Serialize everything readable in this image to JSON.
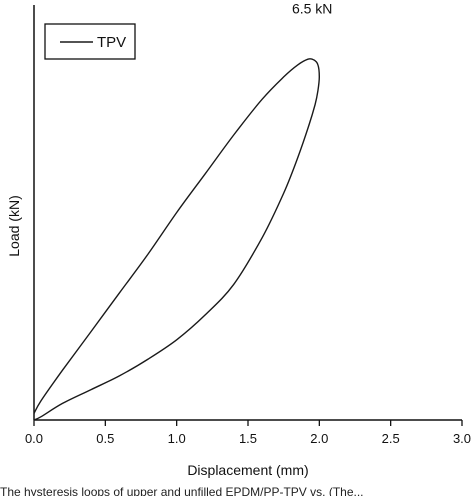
{
  "chart_data": {
    "type": "line",
    "title": "",
    "xlabel": "Displacement (mm)",
    "ylabel": "Load (kN)",
    "xlim": [
      0,
      3.0
    ],
    "ylim": [
      0,
      7.5
    ],
    "xticks": [
      0.0,
      0.5,
      1.0,
      1.5,
      2.0,
      2.5,
      3.0
    ],
    "xtick_labels": [
      "0.0",
      "0.5",
      "1.0",
      "1.5",
      "2.0",
      "2.5",
      "3.0"
    ],
    "yticks_labeled": false,
    "grid": false,
    "legend_position": "top-left",
    "series": [
      {
        "name": "TPV",
        "color": "#1a1a1a",
        "x": [
          0.0,
          0.05,
          0.2,
          0.4,
          0.6,
          0.8,
          1.0,
          1.2,
          1.4,
          1.6,
          1.75,
          1.85,
          1.92,
          1.96,
          1.99,
          2.0,
          1.99,
          1.97,
          1.93,
          1.85,
          1.75,
          1.6,
          1.4,
          1.2,
          1.0,
          0.8,
          0.6,
          0.4,
          0.2,
          0.05,
          0.0
        ],
        "y": [
          0.12,
          0.35,
          0.9,
          1.6,
          2.3,
          3.0,
          3.75,
          4.45,
          5.15,
          5.8,
          6.2,
          6.42,
          6.52,
          6.51,
          6.42,
          6.2,
          5.95,
          5.7,
          5.35,
          4.75,
          4.1,
          3.3,
          2.45,
          1.9,
          1.45,
          1.1,
          0.8,
          0.55,
          0.3,
          0.06,
          0.0
        ]
      }
    ],
    "annotations": [
      {
        "text": "6.5 kN",
        "x": 1.95,
        "y": 7.35
      }
    ]
  },
  "caption": "The hysteresis loops of upper and unfilled EPDM/PP-TPV vs. (The..."
}
